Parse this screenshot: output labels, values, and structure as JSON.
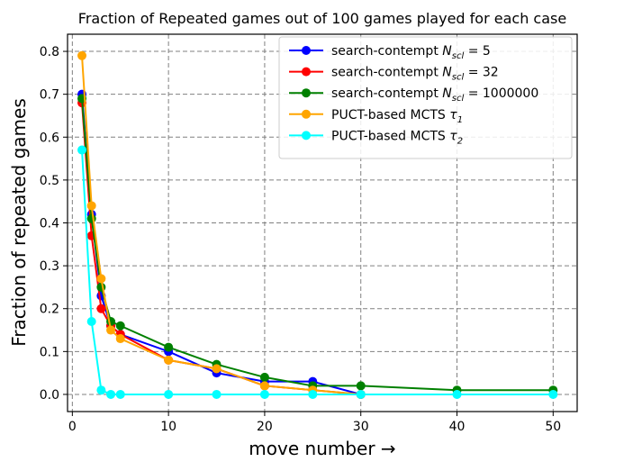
{
  "chart_data": {
    "type": "line",
    "title": "Fraction of Repeated games out of 100 games played for each case",
    "xlabel": "move number →",
    "ylabel": "Fraction of repeated games",
    "xlim": [
      -0.5,
      52.5
    ],
    "ylim": [
      -0.04,
      0.84
    ],
    "xticks": [
      0,
      10,
      20,
      30,
      40,
      50
    ],
    "yticks": [
      0.0,
      0.1,
      0.2,
      0.3,
      0.4,
      0.5,
      0.6,
      0.7,
      0.8
    ],
    "ytick_labels": [
      "0.0",
      "0.1",
      "0.2",
      "0.3",
      "0.4",
      "0.5",
      "0.6",
      "0.7",
      "0.8"
    ],
    "grid": true,
    "legend_position": "top-right",
    "series": [
      {
        "name": "search-contempt N_scl = 5",
        "label_main": "search-contempt ",
        "label_var": "N",
        "label_sub": "scl",
        "label_rest": " = 5",
        "color": "#0000ff",
        "x": [
          1,
          2,
          3,
          4,
          5,
          10,
          15,
          20,
          25,
          30
        ],
        "y": [
          0.7,
          0.42,
          0.23,
          0.16,
          0.14,
          0.1,
          0.05,
          0.03,
          0.03,
          0.0
        ]
      },
      {
        "name": "search-contempt N_scl = 32",
        "label_main": "search-contempt ",
        "label_var": "N",
        "label_sub": "scl",
        "label_rest": " = 32",
        "color": "#ff0000",
        "x": [
          1,
          2,
          3,
          4,
          5,
          10,
          15,
          20,
          25,
          30
        ],
        "y": [
          0.68,
          0.37,
          0.2,
          0.16,
          0.14,
          0.08,
          0.06,
          0.02,
          0.01,
          0.0
        ]
      },
      {
        "name": "search-contempt N_scl = 1000000",
        "label_main": "search-contempt ",
        "label_var": "N",
        "label_sub": "scl",
        "label_rest": " = 1000000",
        "color": "#008000",
        "x": [
          1,
          2,
          3,
          4,
          5,
          10,
          15,
          20,
          25,
          30,
          40,
          50
        ],
        "y": [
          0.69,
          0.41,
          0.25,
          0.17,
          0.16,
          0.11,
          0.07,
          0.04,
          0.02,
          0.02,
          0.01,
          0.01
        ]
      },
      {
        "name": "PUCT-based MCTS τ1",
        "label_main": "PUCT-based MCTS ",
        "label_var": "τ",
        "label_sub": "1",
        "label_rest": "",
        "color": "#ffa500",
        "x": [
          1,
          2,
          3,
          4,
          5,
          10,
          15,
          20,
          25,
          30
        ],
        "y": [
          0.79,
          0.44,
          0.27,
          0.15,
          0.13,
          0.08,
          0.06,
          0.02,
          0.01,
          0.0
        ]
      },
      {
        "name": "PUCT-based MCTS τ2",
        "label_main": "PUCT-based MCTS ",
        "label_var": "τ",
        "label_sub": "2",
        "label_rest": "",
        "color": "#00ffff",
        "x": [
          1,
          2,
          3,
          4,
          5,
          10,
          15,
          20,
          25,
          30,
          40,
          50
        ],
        "y": [
          0.57,
          0.17,
          0.01,
          0.0,
          0.0,
          0.0,
          0.0,
          0.0,
          0.0,
          0.0,
          0.0,
          0.0
        ]
      }
    ]
  }
}
